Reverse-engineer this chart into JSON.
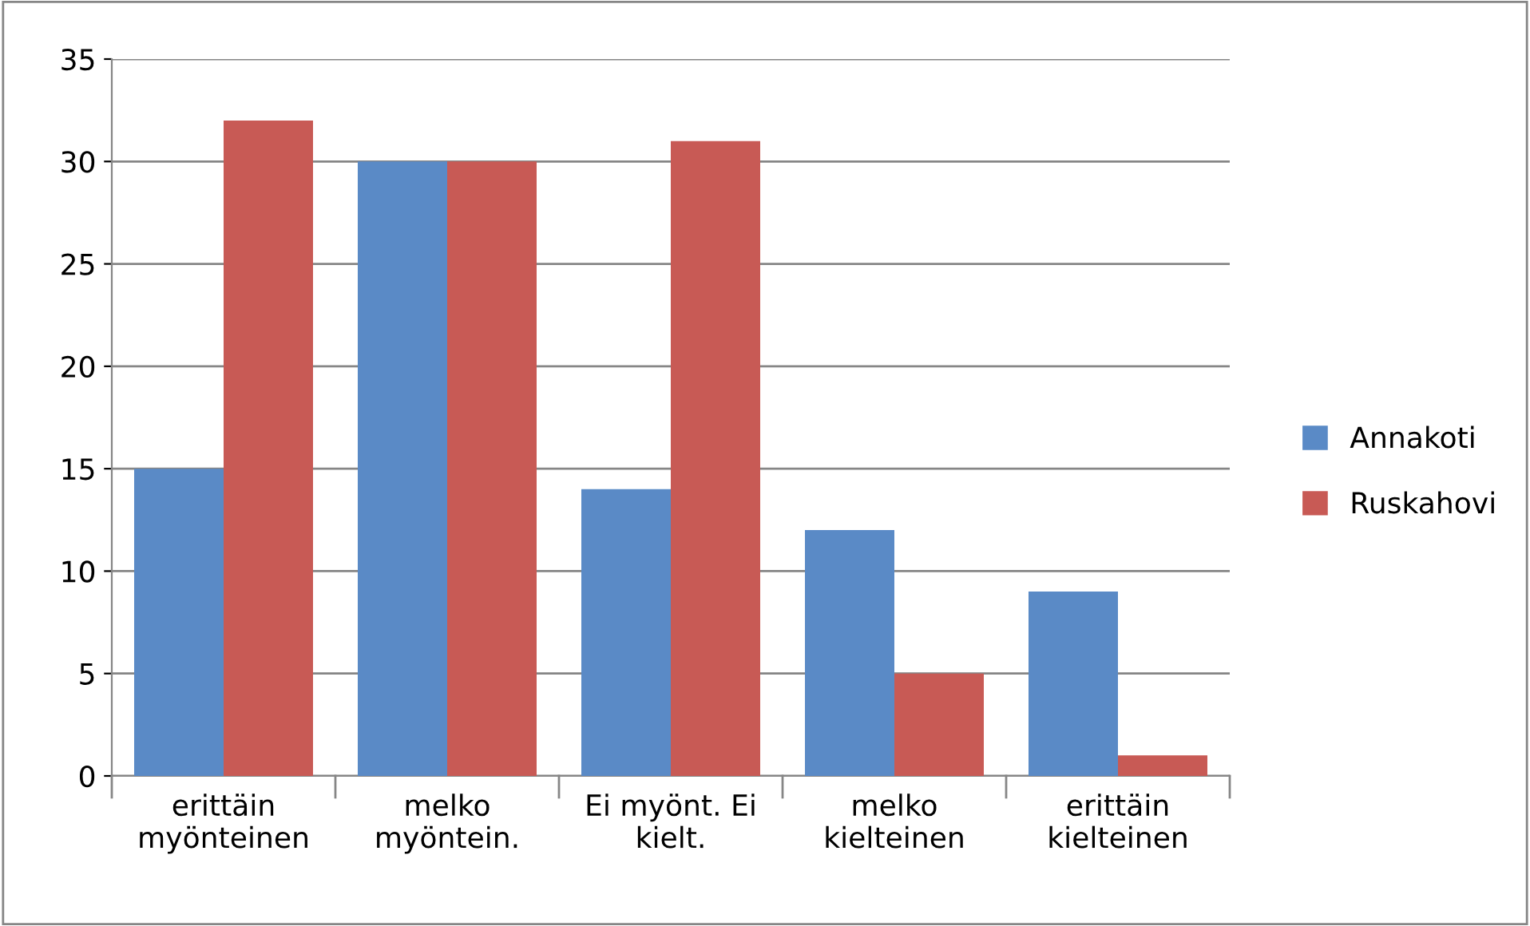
{
  "chart_data": {
    "type": "bar",
    "categories": [
      "erittäin\nmyönteinen",
      "melko\nmyöntein.",
      "Ei myönt. Ei\nkielt.",
      "melko\nkielteinen",
      "erittäin\nkielteinen"
    ],
    "series": [
      {
        "name": "Annakoti",
        "color": "#5a8ac6",
        "values": [
          15,
          30,
          14,
          12,
          9
        ]
      },
      {
        "name": "Ruskahovi",
        "color": "#c85a55",
        "values": [
          32,
          30,
          31,
          5,
          1
        ]
      }
    ],
    "ylim": [
      0,
      35
    ],
    "yticks": [
      0,
      5,
      10,
      15,
      20,
      25,
      30,
      35
    ],
    "grid": "y",
    "legend": "right"
  }
}
